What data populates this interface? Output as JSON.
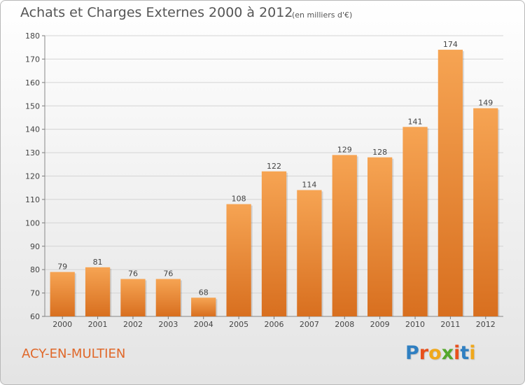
{
  "header": {
    "title": "Achats et Charges Externes 2000 à 2012",
    "unit": "(en milliers d'€)"
  },
  "footer": {
    "city": "ACY-EN-MULTIEN",
    "logo": "Proxiti"
  },
  "colors": {
    "bar_top": "#f6a453",
    "bar_bottom": "#d86f1f",
    "city_text": "#e0682a",
    "logo_letters": [
      "#2f7fc1",
      "#e8501c",
      "#f0a81c",
      "#55a82d",
      "#e8501c",
      "#2f7fc1",
      "#f0a81c"
    ]
  },
  "chart_data": {
    "type": "bar",
    "title": "Achats et Charges Externes 2000 à 2012",
    "subtitle": "(en milliers d'€)",
    "xlabel": "",
    "ylabel": "",
    "categories": [
      "2000",
      "2001",
      "2002",
      "2003",
      "2004",
      "2005",
      "2006",
      "2007",
      "2008",
      "2009",
      "2010",
      "2011",
      "2012"
    ],
    "values": [
      79,
      81,
      76,
      76,
      68,
      108,
      122,
      114,
      129,
      128,
      141,
      174,
      149
    ],
    "ylim": [
      60,
      180
    ],
    "yticks": [
      60,
      70,
      80,
      90,
      100,
      110,
      120,
      130,
      140,
      150,
      160,
      170,
      180
    ],
    "grid": true,
    "legend": "none"
  }
}
